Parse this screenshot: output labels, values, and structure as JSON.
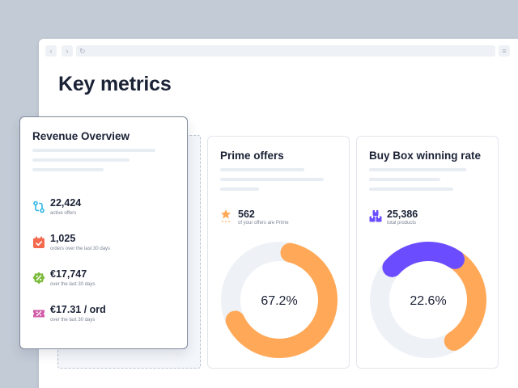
{
  "browser": {
    "back_icon": "‹",
    "forward_icon": "›",
    "reload_icon": "↻",
    "menu_icon": "≡"
  },
  "page": {
    "title": "Key metrics"
  },
  "revenue_overview": {
    "title": "Revenue Overview",
    "metrics": [
      {
        "value": "22,424",
        "label": "active offers",
        "icon": "offers-icon",
        "color": "#2fb5e6"
      },
      {
        "value": "1,025",
        "label": "orders over the last 30 days",
        "icon": "calendar-check-icon",
        "color": "#f36a4f"
      },
      {
        "value": "€17,747",
        "label": "over the last 30 days",
        "icon": "discount-badge-icon",
        "color": "#7dbb3c"
      },
      {
        "value": "€17.31 / ord",
        "label": "over the last 30 days",
        "icon": "ticket-icon",
        "color": "#d25ca8"
      }
    ]
  },
  "prime_offers": {
    "title": "Prime offers",
    "stat_value": "562",
    "stat_label": "of your offers are Prime",
    "icon": "prime-star-icon",
    "percent_text": "67.2%",
    "percent": 0.672,
    "color": "#ffa958",
    "track_color": "#eef2f6"
  },
  "buy_box": {
    "title": "Buy Box winning rate",
    "stat_value": "25,386",
    "stat_label": "total products",
    "icon": "boxes-icon",
    "percent_text": "22.6%",
    "percent": 0.226,
    "color": "#6b4dff",
    "secondary_color": "#ffa958",
    "track_color": "#eef2f6"
  }
}
